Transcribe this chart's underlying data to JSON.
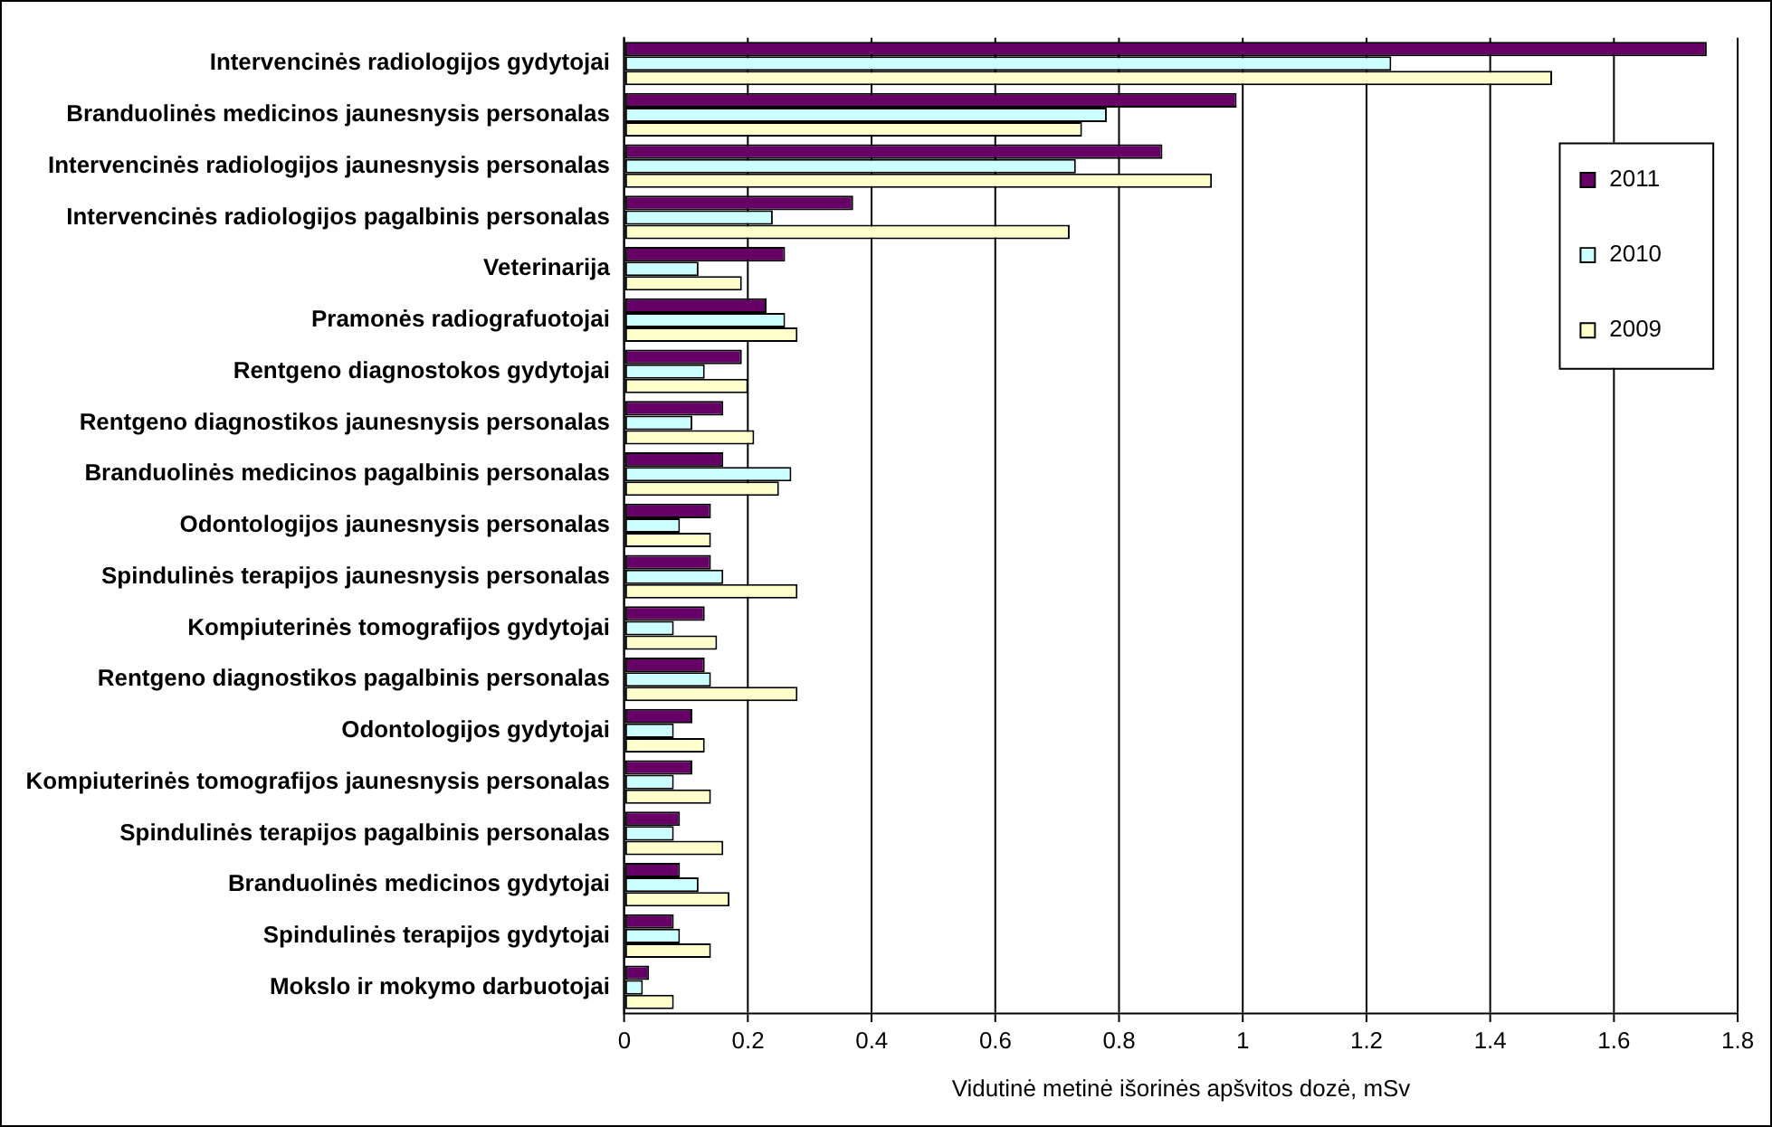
{
  "chart_data": {
    "type": "bar",
    "orientation": "horizontal",
    "xlabel": "Vidutinė metinė išorinės apšvitos dozė, mSv",
    "categories": [
      "Intervencinės radiologijos gydytojai",
      "Branduolinės medicinos jaunesnysis personalas",
      "Intervencinės radiologijos jaunesnysis personalas",
      "Intervencinės radiologijos pagalbinis personalas",
      "Veterinarija",
      "Pramonės radiografuotojai",
      "Rentgeno diagnostokos gydytojai",
      "Rentgeno diagnostikos jaunesnysis personalas",
      "Branduolinės medicinos pagalbinis personalas",
      "Odontologijos jaunesnysis personalas",
      "Spindulinės terapijos jaunesnysis personalas",
      "Kompiuterinės tomografijos gydytojai",
      "Rentgeno diagnostikos pagalbinis personalas",
      "Odontologijos gydytojai",
      "Kompiuterinės tomografijos jaunesnysis personalas",
      "Spindulinės terapijos pagalbinis personalas",
      "Branduolinės medicinos gydytojai",
      "Spindulinės terapijos gydytojai",
      "Mokslo ir mokymo darbuotojai"
    ],
    "series": [
      {
        "name": "2011",
        "color": "#660066",
        "values": [
          1.75,
          0.99,
          0.87,
          0.37,
          0.26,
          0.23,
          0.19,
          0.16,
          0.16,
          0.14,
          0.14,
          0.13,
          0.13,
          0.11,
          0.11,
          0.09,
          0.09,
          0.08,
          0.04
        ]
      },
      {
        "name": "2010",
        "color": "#ccffff",
        "values": [
          1.24,
          0.78,
          0.73,
          0.24,
          0.12,
          0.26,
          0.13,
          0.11,
          0.27,
          0.09,
          0.16,
          0.08,
          0.14,
          0.08,
          0.08,
          0.08,
          0.12,
          0.09,
          0.03
        ]
      },
      {
        "name": "2009",
        "color": "#ffffcc",
        "values": [
          1.5,
          0.74,
          0.95,
          0.72,
          0.19,
          0.28,
          0.2,
          0.21,
          0.25,
          0.14,
          0.28,
          0.15,
          0.28,
          0.13,
          0.14,
          0.16,
          0.17,
          0.14,
          0.08
        ]
      }
    ],
    "xlim": [
      0,
      1.8
    ],
    "xticks": [
      0,
      0.2,
      0.4,
      0.6,
      0.8,
      1,
      1.2,
      1.4,
      1.6,
      1.8
    ],
    "grid": "x",
    "legend": "top right"
  }
}
